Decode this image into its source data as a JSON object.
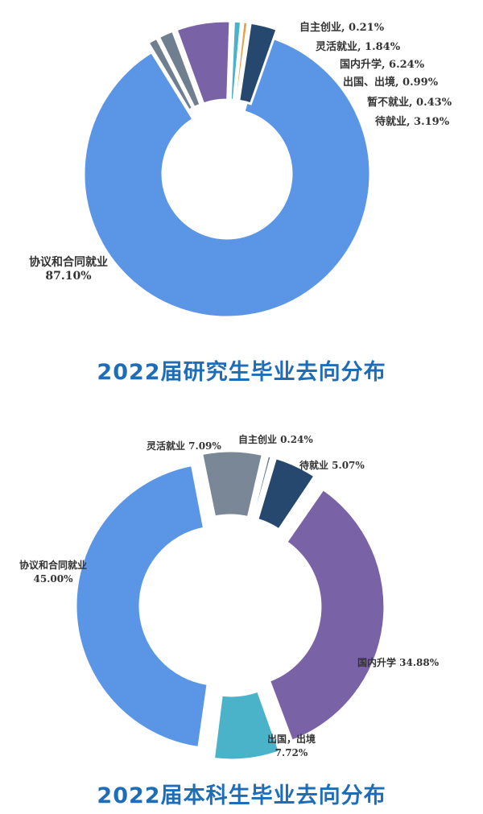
{
  "chart_data": [
    {
      "type": "pie",
      "title": "2022届研究生毕业去向分布",
      "unit": "%",
      "slices": [
        {
          "name": "协议和合同就业",
          "value": 87.1,
          "label": [
            "协议和合同就业",
            "87.10%"
          ],
          "color": "#5b96e6"
        },
        {
          "name": "自主创业",
          "value": 0.21,
          "label": [
            "自主创业, 0.21%"
          ],
          "color": "#6f7f8f"
        },
        {
          "name": "灵活就业",
          "value": 1.84,
          "label": [
            "灵活就业, 1.84%"
          ],
          "color": "#6f7f8f"
        },
        {
          "name": "国内升学",
          "value": 6.24,
          "label": [
            "国内升学, 6.24%"
          ],
          "color": "#7a62a6"
        },
        {
          "name": "出国、出境",
          "value": 0.99,
          "label": [
            "出国、出境, 0.99%"
          ],
          "color": "#4bb3c9"
        },
        {
          "name": "暂不就业",
          "value": 0.43,
          "label": [
            "暂不就业, 0.43%"
          ],
          "color": "#e8a04a"
        },
        {
          "name": "待就业",
          "value": 3.19,
          "label": [
            "待就业, 3.19%"
          ],
          "color": "#26476e"
        }
      ]
    },
    {
      "type": "pie",
      "title": "2022届本科生毕业去向分布",
      "unit": "%",
      "slices": [
        {
          "name": "灵活就业",
          "value": 7.09,
          "label": [
            "灵活就业 7.09%"
          ],
          "color": "#7a8797"
        },
        {
          "name": "自主创业",
          "value": 0.24,
          "label": [
            "自主创业 0.24%"
          ],
          "color": "#6f7f8f"
        },
        {
          "name": "待就业",
          "value": 5.07,
          "label": [
            "待就业  5.07%"
          ],
          "color": "#26476e"
        },
        {
          "name": "国内升学",
          "value": 34.88,
          "label": [
            "国内升学 34.88%"
          ],
          "color": "#7a62a6"
        },
        {
          "name": "出国，出境",
          "value": 7.72,
          "label": [
            "出国，出境",
            "7.72%"
          ],
          "color": "#4bb3c9"
        },
        {
          "name": "协议和合同就业",
          "value": 45.0,
          "label": [
            "协议和合同就业",
            "45.00%"
          ],
          "color": "#5b96e6"
        }
      ]
    }
  ]
}
